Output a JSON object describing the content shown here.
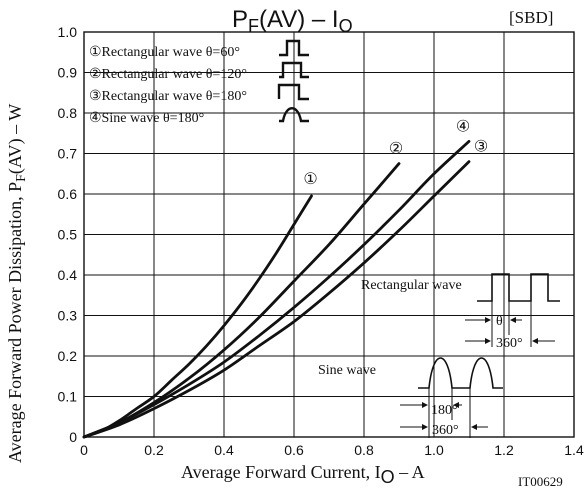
{
  "chart_data": {
    "type": "line",
    "title_main": "P",
    "title_sub": "F",
    "title_rest": "(AV)  –  I",
    "title_sub2": "O",
    "tag": "[SBD]",
    "xlabel_main": "Average Forward Current,  I",
    "xlabel_sub": "O",
    "xlabel_rest": " –  A",
    "ylabel_main": "Average Forward Power Dissipation,  P",
    "ylabel_sub": "F",
    "ylabel_rest": "(AV)  –  W",
    "code": "IT00629",
    "xlim": [
      0,
      1.4
    ],
    "ylim": [
      0,
      1.0
    ],
    "x_ticks": [
      "0",
      "0.2",
      "0.4",
      "0.6",
      "0.8",
      "1.0",
      "1.2",
      "1.4"
    ],
    "y_ticks": [
      "0",
      "0.1",
      "0.2",
      "0.3",
      "0.4",
      "0.5",
      "0.6",
      "0.7",
      "0.8",
      "0.9",
      "1.0"
    ],
    "grid": true,
    "legend": [
      {
        "marker": "①",
        "label": "Rectangular wave θ=60°",
        "icon": "rect-60"
      },
      {
        "marker": "②",
        "label": "Rectangular wave θ=120°",
        "icon": "rect-120"
      },
      {
        "marker": "③",
        "label": "Rectangular wave θ=180°",
        "icon": "rect-180"
      },
      {
        "marker": "④",
        "label": "Sine wave θ=180°",
        "icon": "sine-180"
      }
    ],
    "series": [
      {
        "marker": "①",
        "x": [
          0,
          0.05,
          0.1,
          0.15,
          0.2,
          0.25,
          0.3,
          0.35,
          0.4,
          0.45,
          0.5,
          0.55,
          0.6,
          0.65
        ],
        "y": [
          0,
          0.015,
          0.04,
          0.07,
          0.1,
          0.14,
          0.18,
          0.225,
          0.275,
          0.33,
          0.39,
          0.455,
          0.525,
          0.595
        ]
      },
      {
        "marker": "②",
        "x": [
          0,
          0.1,
          0.2,
          0.3,
          0.4,
          0.5,
          0.6,
          0.7,
          0.8,
          0.9
        ],
        "y": [
          0,
          0.035,
          0.085,
          0.145,
          0.215,
          0.295,
          0.385,
          0.475,
          0.575,
          0.675
        ]
      },
      {
        "marker": "③",
        "x": [
          0,
          0.1,
          0.2,
          0.3,
          0.4,
          0.5,
          0.6,
          0.7,
          0.8,
          0.9,
          1.0,
          1.1
        ],
        "y": [
          0,
          0.03,
          0.07,
          0.115,
          0.165,
          0.225,
          0.285,
          0.355,
          0.43,
          0.51,
          0.595,
          0.68
        ]
      },
      {
        "marker": "④",
        "x": [
          0,
          0.1,
          0.2,
          0.3,
          0.4,
          0.5,
          0.6,
          0.7,
          0.8,
          0.9,
          1.0,
          1.1
        ],
        "y": [
          0,
          0.035,
          0.08,
          0.13,
          0.185,
          0.25,
          0.32,
          0.395,
          0.475,
          0.56,
          0.65,
          0.73
        ]
      }
    ],
    "annotations": {
      "rect_label": "Rectangular wave",
      "theta": "θ",
      "period_rect": "360°",
      "sine_label": "Sine wave",
      "half": "180°",
      "period_sine": "360°"
    }
  }
}
